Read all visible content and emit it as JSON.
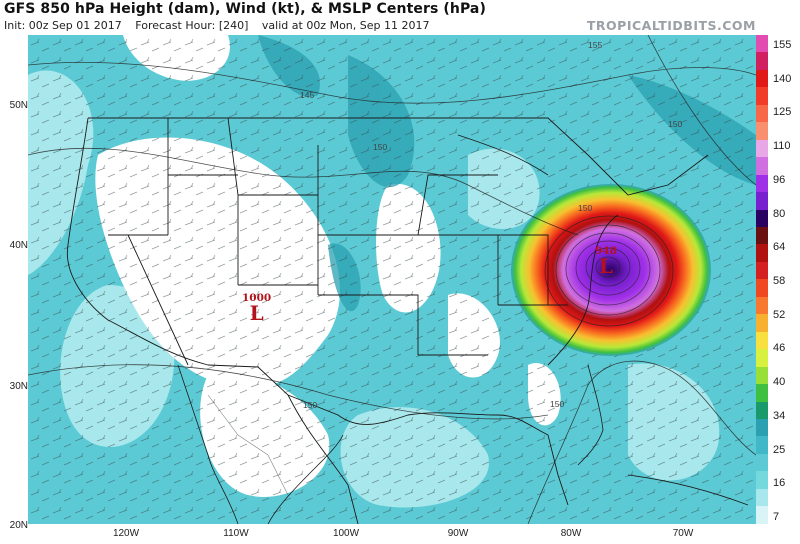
{
  "header": {
    "title": "GFS 850 hPa Height (dam), Wind (kt), & MSLP Centers (hPa)",
    "init": "Init: 00z Sep 01 2017",
    "forecast_hour": "Forecast Hour: [240]",
    "valid": "valid at 00z Mon, Sep 11 2017",
    "brand": "TROPICALTIDBITS.COM"
  },
  "axes": {
    "lat_labels": [
      "50N",
      "40N",
      "30N",
      "20N"
    ],
    "lon_labels": [
      "120W",
      "110W",
      "100W",
      "90W",
      "80W",
      "70W"
    ]
  },
  "colorbar": {
    "labels": [
      "155",
      "140",
      "125",
      "110",
      "96",
      "80",
      "64",
      "58",
      "52",
      "46",
      "40",
      "34",
      "25",
      "16",
      "7"
    ],
    "colors": [
      "#e24bb0",
      "#d02060",
      "#e01818",
      "#f03c28",
      "#f86848",
      "#f89070",
      "#e8a8e8",
      "#d070e0",
      "#a030e8",
      "#7820d0",
      "#2a0060",
      "#6a1010",
      "#b01010",
      "#d42020",
      "#f04820",
      "#f87830",
      "#f8b030",
      "#f8e040",
      "#d8f040",
      "#98e038",
      "#40c040",
      "#1a9a6a",
      "#2aa0b0",
      "#40b8c8",
      "#5ccad4",
      "#74d8dc",
      "#a8e8ec",
      "#d8f4f6"
    ]
  },
  "pressure_centers": [
    {
      "value": "1000",
      "symbol": "L"
    },
    {
      "value": "948",
      "symbol": "L"
    }
  ],
  "contour_labels": [
    "145",
    "150",
    "150",
    "155",
    "150",
    "150",
    "150"
  ],
  "colors": {
    "fill_light": "#a8e8ec",
    "fill_mid": "#5ccad4",
    "fill_dark": "#2aa0b0",
    "low_symbol": "#b3121b"
  }
}
